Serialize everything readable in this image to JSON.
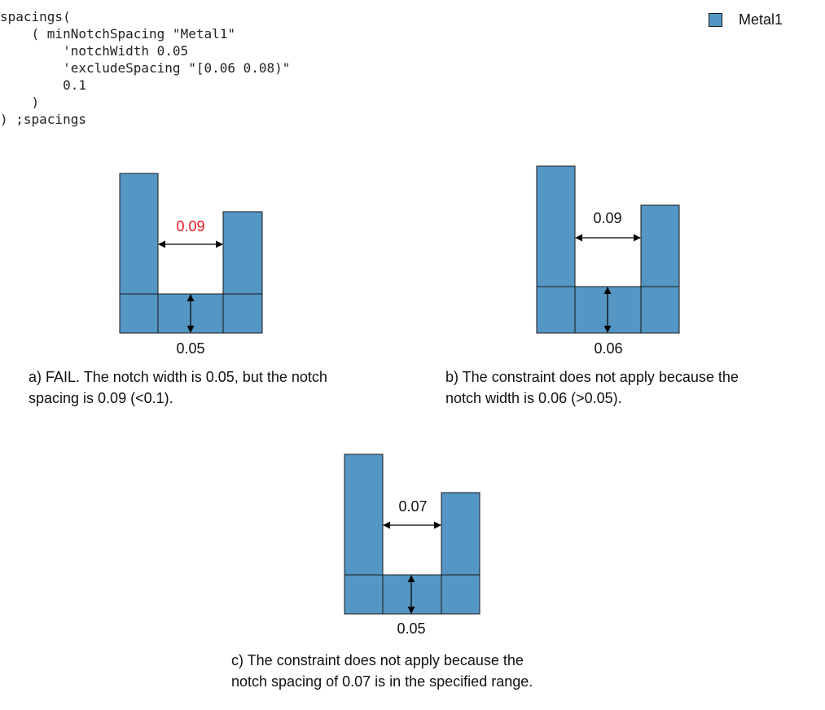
{
  "code_lines": [
    "spacings(",
    "    ( minNotchSpacing \"Metal1\"",
    "        'notchWidth 0.05",
    "        'excludeSpacing \"[0.06 0.08)\"",
    "        0.1",
    "    )",
    ") ;spacings"
  ],
  "legend": {
    "label": "Metal1",
    "color": "#5496c4"
  },
  "colors": {
    "metal": "#5496c4",
    "outline": "#1a1a1a",
    "fail": "#e8151b",
    "text": "#111111"
  },
  "diagrams": [
    {
      "id": "a",
      "spacing_label": "0.09",
      "spacing_fail": true,
      "width_label": "0.05",
      "caption": [
        "a) FAIL. The notch width is 0.05, but the notch",
        "spacing is 0.09 (<0.1)."
      ]
    },
    {
      "id": "b",
      "spacing_label": "0.09",
      "spacing_fail": false,
      "width_label": "0.06",
      "caption": [
        "b) The constraint does not apply because the",
        "notch width is 0.06 (>0.05)."
      ]
    },
    {
      "id": "c",
      "spacing_label": "0.07",
      "spacing_fail": false,
      "width_label": "0.05",
      "caption": [
        "c) The constraint does not apply because the",
        "notch spacing of 0.07 is in the specified range."
      ]
    }
  ]
}
